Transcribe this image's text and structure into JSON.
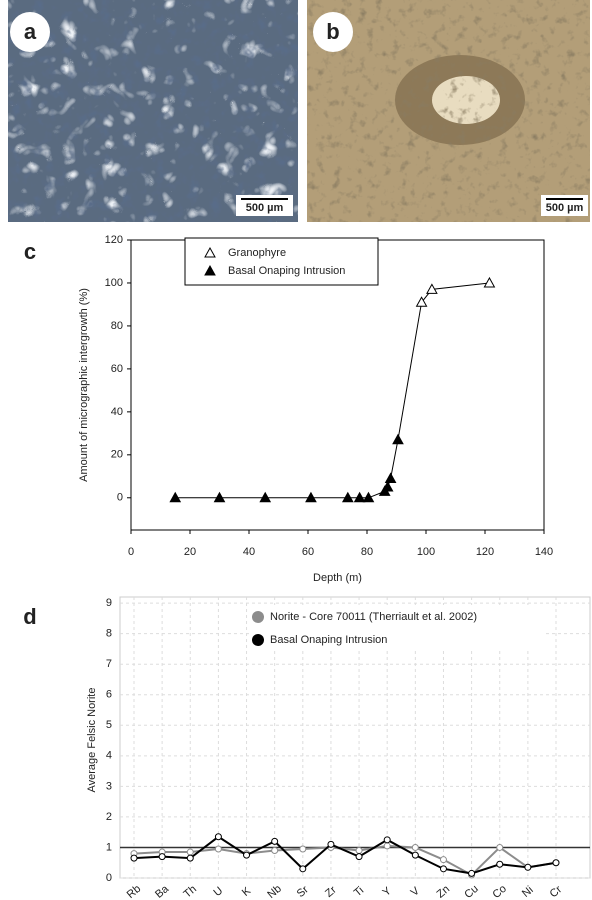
{
  "panels": [
    {
      "label": "a",
      "scale_bar": "500 µm"
    },
    {
      "label": "b",
      "scale_bar": "500 µm"
    }
  ],
  "chart_data": [
    {
      "type": "line",
      "label": "c",
      "xlabel": "Depth (m)",
      "ylabel": "Amount of micrographic intergrowth (%)",
      "xlim": [
        0,
        140
      ],
      "xticks": [
        0,
        20,
        40,
        60,
        80,
        100,
        120,
        140
      ],
      "ylim": [
        -15,
        120
      ],
      "yticks": [
        0,
        20,
        40,
        60,
        80,
        100,
        120
      ],
      "series": [
        {
          "name": "Granophyre",
          "color": "#000000",
          "filled": false,
          "x": [
            98.5,
            102,
            121.5
          ],
          "values": [
            91,
            97,
            100
          ]
        },
        {
          "name": "Basal Onaping Intrusion",
          "color": "#000000",
          "filled": true,
          "x": [
            15,
            30,
            45.5,
            61,
            73.5,
            77.5,
            80.5,
            86,
            87,
            88,
            90.5
          ],
          "values": [
            0,
            0,
            0,
            0,
            0,
            0,
            0,
            3,
            5,
            9,
            27
          ]
        }
      ]
    },
    {
      "type": "line",
      "label": "d",
      "ylabel": "Average Felsic Norite",
      "grid": true,
      "reference_line": 1,
      "categories": [
        "Rb",
        "Ba",
        "Th",
        "U",
        "K",
        "Nb",
        "Sr",
        "Zr",
        "Ti",
        "Y",
        "V",
        "Zn",
        "Cu",
        "Co",
        "Ni",
        "Cr"
      ],
      "ylim": [
        0,
        9.2
      ],
      "yticks": [
        0,
        1,
        2,
        3,
        4,
        5,
        6,
        7,
        8,
        9
      ],
      "series": [
        {
          "name": "Norite - Core 70011 (Therriault et al. 2002)",
          "color": "#8c8c8c",
          "values": [
            0.8,
            0.85,
            0.85,
            0.95,
            0.8,
            0.9,
            0.95,
            1.0,
            0.9,
            1.05,
            1.0,
            0.6,
            0.1,
            1.0,
            0.35,
            0.5
          ]
        },
        {
          "name": "Basal Onaping Intrusion",
          "color": "#000000",
          "values": [
            0.65,
            0.7,
            0.65,
            1.35,
            0.75,
            1.2,
            0.3,
            1.1,
            0.7,
            1.25,
            0.75,
            0.3,
            0.15,
            0.45,
            0.35,
            0.5
          ]
        }
      ]
    }
  ]
}
